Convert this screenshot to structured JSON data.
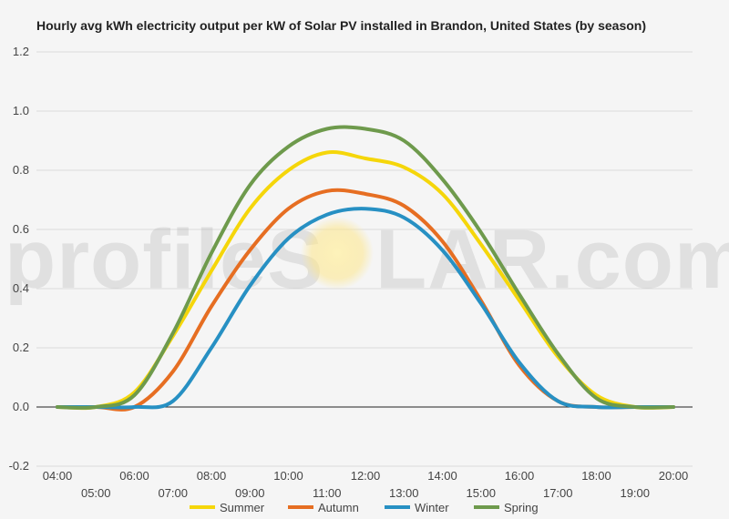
{
  "chart_data": {
    "type": "line",
    "title": "Hourly avg kWh electricity output per kW of Solar PV installed in Brandon, United States (by season)",
    "xlabel": "",
    "ylabel": "",
    "x": [
      "04:00",
      "05:00",
      "06:00",
      "07:00",
      "08:00",
      "09:00",
      "10:00",
      "11:00",
      "12:00",
      "13:00",
      "14:00",
      "15:00",
      "16:00",
      "17:00",
      "18:00",
      "19:00",
      "20:00"
    ],
    "ylim": [
      -0.2,
      1.2
    ],
    "yticks": [
      -0.2,
      0.0,
      0.2,
      0.4,
      0.6,
      0.8,
      1.0,
      1.2
    ],
    "ytick_labels": [
      "-0.2",
      "0.0",
      "0.2",
      "0.4",
      "0.6",
      "0.8",
      "1.0",
      "1.2"
    ],
    "grid": true,
    "legend_position": "bottom",
    "series": [
      {
        "name": "Summer",
        "color": "#f5d60a",
        "values": [
          0.0,
          0.0,
          0.05,
          0.24,
          0.46,
          0.67,
          0.8,
          0.86,
          0.84,
          0.81,
          0.72,
          0.55,
          0.36,
          0.17,
          0.04,
          0.0,
          0.0
        ]
      },
      {
        "name": "Autumn",
        "color": "#e66e22",
        "values": [
          0.0,
          0.0,
          0.0,
          0.12,
          0.34,
          0.53,
          0.67,
          0.73,
          0.72,
          0.68,
          0.56,
          0.36,
          0.14,
          0.02,
          0.0,
          0.0,
          0.0
        ]
      },
      {
        "name": "Winter",
        "color": "#2790c3",
        "values": [
          0.0,
          0.0,
          0.0,
          0.02,
          0.2,
          0.41,
          0.57,
          0.65,
          0.67,
          0.64,
          0.53,
          0.35,
          0.15,
          0.02,
          0.0,
          0.0,
          0.0
        ]
      },
      {
        "name": "Spring",
        "color": "#6e9a4c",
        "values": [
          0.0,
          0.0,
          0.04,
          0.25,
          0.52,
          0.75,
          0.88,
          0.94,
          0.94,
          0.9,
          0.77,
          0.59,
          0.38,
          0.18,
          0.03,
          0.0,
          0.0
        ]
      }
    ]
  },
  "watermark": {
    "before": "profileS",
    "after": "LAR.com"
  }
}
